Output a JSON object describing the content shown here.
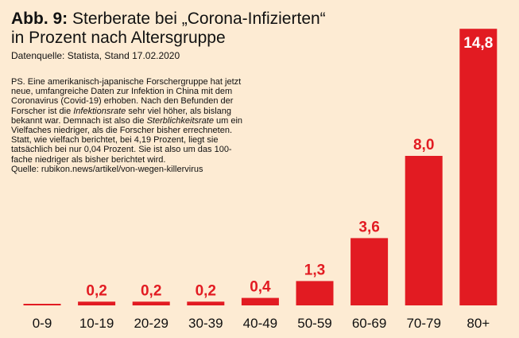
{
  "header": {
    "fig_label": "Abb. 9:",
    "title_part1": "Sterberate bei „Corona-Infizierten“",
    "title_part2": "in Prozent nach Altersgruppe",
    "source": "Datenquelle: Statista, Stand 17.02.2020"
  },
  "note": {
    "seg1": "PS. Eine amerikanisch-japanische Forschergruppe hat jetzt neue, umfangreiche Daten zur Infektion in China mit dem Coronavirus (Covid-19) erhoben. Nach den Befunden der Forscher ist die ",
    "seg2_italic": "Infektions­rate",
    "seg3": " sehr viel höher, als bislang bekannt war. Demnach ist also die ",
    "seg4_italic": "Sterblichkeitsrate",
    "seg5": " um ein Viel­faches niedriger, als die Forscher bisher errechneten. Statt, wie vielfach berichtet, bei 4,19 Prozent, liegt sie tatsächlich bei nur 0,04 Prozent. Sie ist also um das 100-fache niedriger als bisher berichtet wird.",
    "seg6": "Quelle: rubikon.news/artikel/von-wegen-killervirus"
  },
  "chart_data": {
    "type": "bar",
    "categories": [
      "0-9",
      "10-19",
      "20-29",
      "30-39",
      "40-49",
      "50-59",
      "60-69",
      "70-79",
      "80+"
    ],
    "values": [
      0,
      0.2,
      0.2,
      0.2,
      0.4,
      1.3,
      3.6,
      8.0,
      14.8
    ],
    "value_labels": [
      "",
      "0,2",
      "0,2",
      "0,2",
      "0,4",
      "1,3",
      "3,6",
      "8,0",
      "14,8"
    ],
    "bar_color": "#e21b22",
    "background_color": "#fdebd3",
    "grid": false,
    "title": "Sterberate bei „Corona-Infizierten“ in Prozent nach Altersgruppe"
  }
}
